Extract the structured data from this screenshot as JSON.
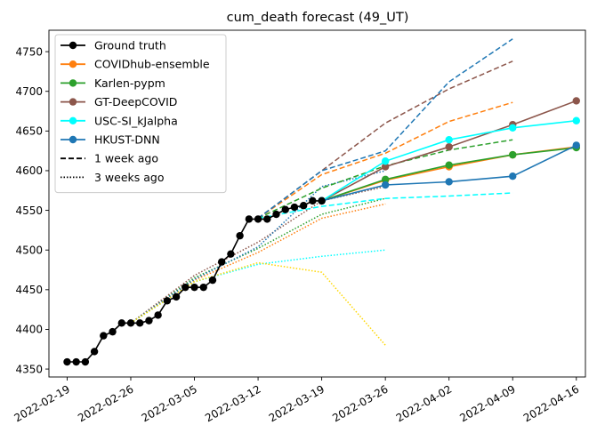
{
  "chart_data": {
    "type": "line",
    "title": "cum_death forecast (49_UT)",
    "xlabel": "",
    "ylabel": "",
    "x_ticks": [
      "2022-02-19",
      "2022-02-26",
      "2022-03-05",
      "2022-03-12",
      "2022-03-19",
      "2022-03-26",
      "2022-04-02",
      "2022-04-09",
      "2022-04-16"
    ],
    "y_ticks": [
      4350,
      4400,
      4450,
      4500,
      4550,
      4600,
      4650,
      4700,
      4750
    ],
    "xlim": [
      "2022-02-17",
      "2022-04-17"
    ],
    "ylim": [
      4340,
      4777
    ],
    "grid": false,
    "legend_position": "top-left",
    "legend": [
      {
        "label": "Ground truth",
        "color": "#000000",
        "style": "solid",
        "marker": true
      },
      {
        "label": "COVIDhub-ensemble",
        "color": "#ff7f0e",
        "style": "solid",
        "marker": true
      },
      {
        "label": "Karlen-pypm",
        "color": "#2ca02c",
        "style": "solid",
        "marker": true
      },
      {
        "label": "GT-DeepCOVID",
        "color": "#8c564b",
        "style": "solid",
        "marker": true
      },
      {
        "label": "USC-SI_kJalpha",
        "color": "#00ffff",
        "style": "solid",
        "marker": true
      },
      {
        "label": "HKUST-DNN",
        "color": "#1f77b4",
        "style": "solid",
        "marker": true
      },
      {
        "label": "1 week ago",
        "color": "#000000",
        "style": "dashed",
        "marker": false
      },
      {
        "label": "3 weeks ago",
        "color": "#000000",
        "style": "dotted",
        "marker": false
      }
    ],
    "series": [
      {
        "name": "3 weeks ago",
        "color": "#ff7f0e",
        "style": "dotted",
        "x": [
          "2022-02-26",
          "2022-03-05",
          "2022-03-12",
          "2022-03-19",
          "2022-03-26"
        ],
        "y": [
          4408,
          4462,
          4497,
          4540,
          4558
        ]
      },
      {
        "name": "3 weeks ago",
        "color": "#2ca02c",
        "style": "dotted",
        "x": [
          "2022-02-26",
          "2022-03-05",
          "2022-03-12",
          "2022-03-19",
          "2022-03-26"
        ],
        "y": [
          4408,
          4465,
          4502,
          4545,
          4565
        ]
      },
      {
        "name": "3 weeks ago",
        "color": "#8c564b",
        "style": "dotted",
        "x": [
          "2022-02-26",
          "2022-03-05",
          "2022-03-12",
          "2022-03-19",
          "2022-03-26"
        ],
        "y": [
          4408,
          4468,
          4510,
          4562,
          4580
        ]
      },
      {
        "name": "3 weeks ago",
        "color": "#00ffff",
        "style": "dotted",
        "x": [
          "2022-02-26",
          "2022-03-05",
          "2022-03-12",
          "2022-03-19",
          "2022-03-26"
        ],
        "y": [
          4408,
          4460,
          4482,
          4492,
          4500
        ]
      },
      {
        "name": "3 weeks ago",
        "color": "#1f77b4",
        "style": "dotted",
        "x": [
          "2022-02-26",
          "2022-03-05",
          "2022-03-12",
          "2022-03-19",
          "2022-03-26"
        ],
        "y": [
          4408,
          4463,
          4504,
          4580,
          4600
        ]
      },
      {
        "name": "3 weeks ago",
        "color": "#ffd700",
        "style": "dotted",
        "x": [
          "2022-02-26",
          "2022-03-05",
          "2022-03-12",
          "2022-03-19",
          "2022-03-26"
        ],
        "y": [
          4408,
          4460,
          4484,
          4472,
          4380
        ]
      },
      {
        "name": "1 week ago",
        "color": "#ff7f0e",
        "style": "dashed",
        "x": [
          "2022-03-12",
          "2022-03-19",
          "2022-03-26",
          "2022-04-02",
          "2022-04-09"
        ],
        "y": [
          4540,
          4595,
          4622,
          4662,
          4686
        ]
      },
      {
        "name": "1 week ago",
        "color": "#2ca02c",
        "style": "dashed",
        "x": [
          "2022-03-12",
          "2022-03-19",
          "2022-03-26",
          "2022-04-02",
          "2022-04-09"
        ],
        "y": [
          4540,
          4578,
          4606,
          4626,
          4639
        ]
      },
      {
        "name": "1 week ago",
        "color": "#8c564b",
        "style": "dashed",
        "x": [
          "2022-03-12",
          "2022-03-19",
          "2022-03-26",
          "2022-04-02",
          "2022-04-09"
        ],
        "y": [
          4540,
          4600,
          4660,
          4703,
          4738
        ]
      },
      {
        "name": "1 week ago",
        "color": "#00ffff",
        "style": "dashed",
        "x": [
          "2022-03-12",
          "2022-03-19",
          "2022-03-26",
          "2022-04-02",
          "2022-04-09"
        ],
        "y": [
          4540,
          4555,
          4565,
          4568,
          4572
        ]
      },
      {
        "name": "1 week ago",
        "color": "#1f77b4",
        "style": "dashed",
        "x": [
          "2022-03-12",
          "2022-03-19",
          "2022-03-26",
          "2022-04-02",
          "2022-04-09"
        ],
        "y": [
          4540,
          4600,
          4625,
          4712,
          4766
        ]
      },
      {
        "name": "COVIDhub-ensemble",
        "color": "#ff7f0e",
        "style": "solid",
        "marker": true,
        "x": [
          "2022-03-19",
          "2022-03-26",
          "2022-04-02",
          "2022-04-09",
          "2022-04-16"
        ],
        "y": [
          4562,
          4588,
          4605,
          4620,
          4630
        ]
      },
      {
        "name": "Karlen-pypm",
        "color": "#2ca02c",
        "style": "solid",
        "marker": true,
        "x": [
          "2022-03-19",
          "2022-03-26",
          "2022-04-02",
          "2022-04-09",
          "2022-04-16"
        ],
        "y": [
          4562,
          4589,
          4607,
          4620,
          4629
        ]
      },
      {
        "name": "GT-DeepCOVID",
        "color": "#8c564b",
        "style": "solid",
        "marker": true,
        "x": [
          "2022-03-19",
          "2022-03-26",
          "2022-04-02",
          "2022-04-09",
          "2022-04-16"
        ],
        "y": [
          4562,
          4605,
          4630,
          4658,
          4688
        ]
      },
      {
        "name": "USC-SI_kJalpha",
        "color": "#00ffff",
        "style": "solid",
        "marker": true,
        "x": [
          "2022-03-19",
          "2022-03-26",
          "2022-04-02",
          "2022-04-09",
          "2022-04-16"
        ],
        "y": [
          4562,
          4612,
          4639,
          4654,
          4663
        ]
      },
      {
        "name": "HKUST-DNN",
        "color": "#1f77b4",
        "style": "solid",
        "marker": true,
        "x": [
          "2022-03-19",
          "2022-03-26",
          "2022-04-02",
          "2022-04-09",
          "2022-04-16"
        ],
        "y": [
          4562,
          4582,
          4586,
          4593,
          4632
        ]
      },
      {
        "name": "Ground truth",
        "color": "#000000",
        "style": "solid",
        "marker": true,
        "x": [
          "2022-02-19",
          "2022-02-20",
          "2022-02-21",
          "2022-02-22",
          "2022-02-23",
          "2022-02-24",
          "2022-02-25",
          "2022-02-26",
          "2022-02-27",
          "2022-02-28",
          "2022-03-01",
          "2022-03-02",
          "2022-03-03",
          "2022-03-04",
          "2022-03-05",
          "2022-03-06",
          "2022-03-07",
          "2022-03-08",
          "2022-03-09",
          "2022-03-10",
          "2022-03-11",
          "2022-03-12",
          "2022-03-13",
          "2022-03-14",
          "2022-03-15",
          "2022-03-16",
          "2022-03-17",
          "2022-03-18",
          "2022-03-19"
        ],
        "y": [
          4359,
          4359,
          4359,
          4372,
          4392,
          4397,
          4408,
          4408,
          4408,
          4411,
          4418,
          4436,
          4441,
          4453,
          4453,
          4453,
          4462,
          4485,
          4495,
          4518,
          4539,
          4539,
          4539,
          4545,
          4551,
          4554,
          4556,
          4562,
          4562
        ]
      }
    ]
  }
}
